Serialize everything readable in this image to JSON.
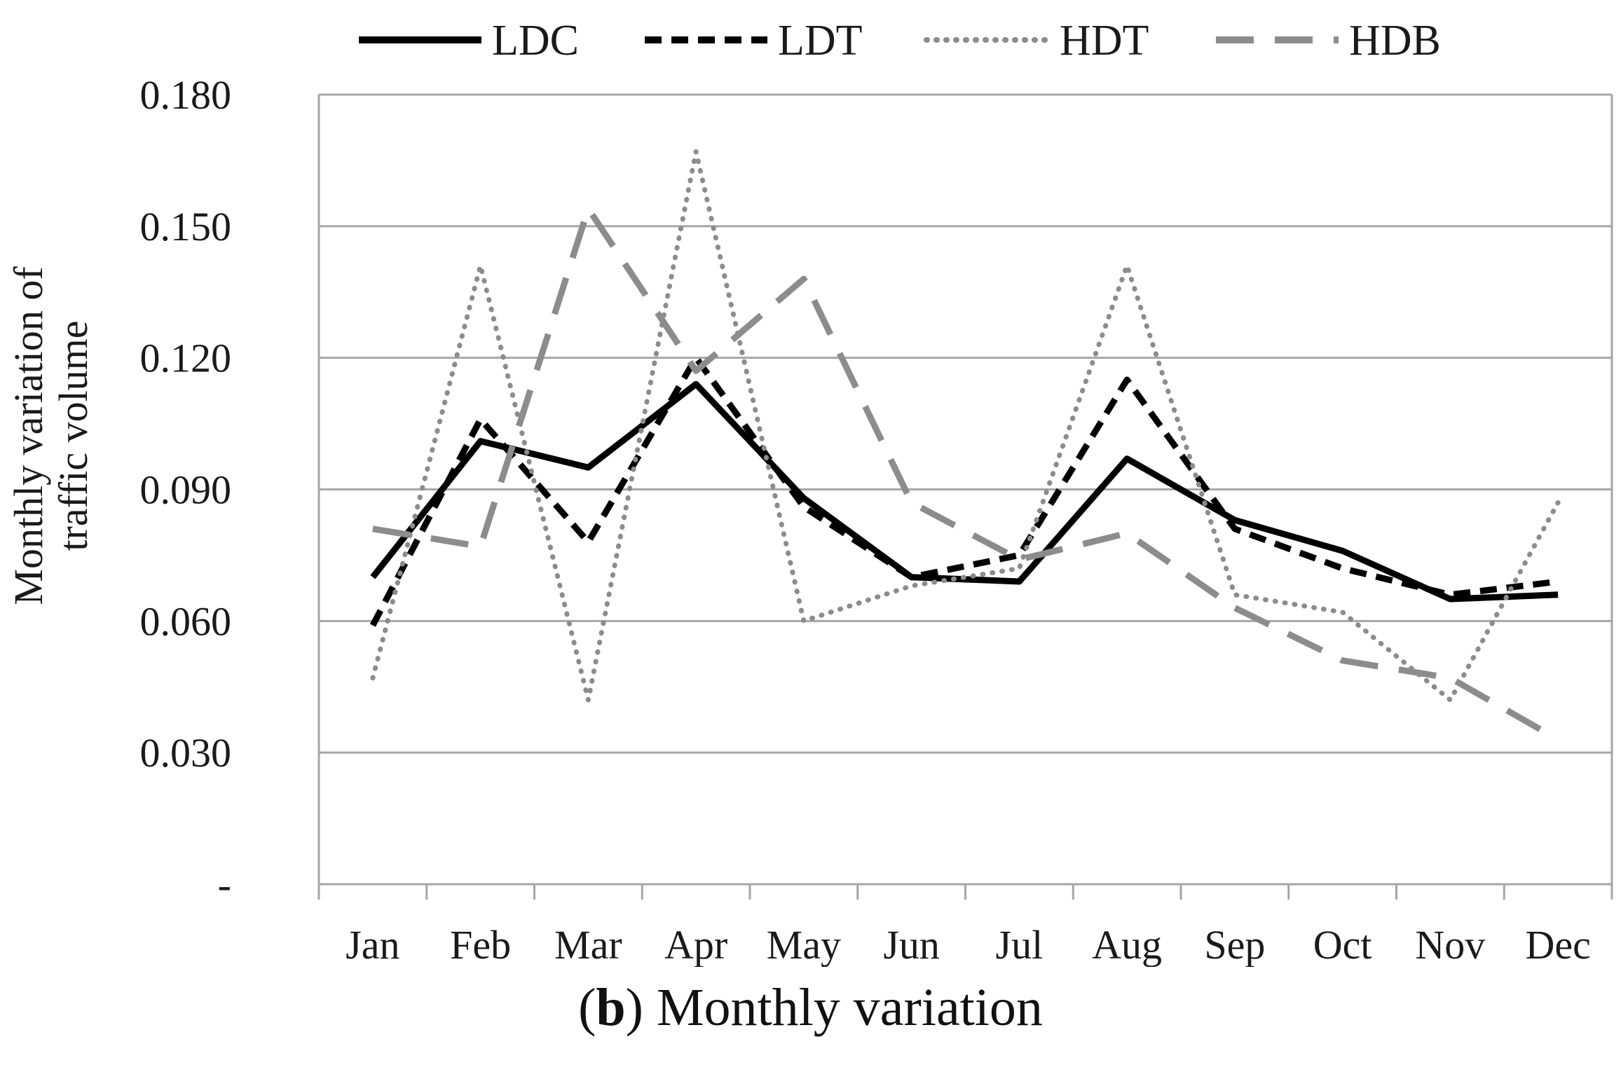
{
  "caption": {
    "prefix": "(",
    "bold": "b",
    "suffix": ") Monthly variation"
  },
  "chart_data": {
    "type": "line",
    "title": "",
    "xlabel": "",
    "ylabel": [
      "Monthly variation of",
      "traffic volume"
    ],
    "categories": [
      "Jan",
      "Feb",
      "Mar",
      "Apr",
      "May",
      "Jun",
      "Jul",
      "Aug",
      "Sep",
      "Oct",
      "Nov",
      "Dec"
    ],
    "ylim": [
      0,
      0.18
    ],
    "yticks": [
      0,
      0.03,
      0.06,
      0.09,
      0.12,
      0.15,
      0.18
    ],
    "ytick_labels": [
      "-",
      "0.030",
      "0.060",
      "0.090",
      "0.120",
      "0.150",
      "0.180"
    ],
    "grid": true,
    "legend_position": "top",
    "series": [
      {
        "name": "LDC",
        "style": "solid",
        "color": "#000000",
        "values": [
          0.07,
          0.101,
          0.095,
          0.114,
          0.088,
          0.07,
          0.069,
          0.097,
          0.083,
          0.076,
          0.065,
          0.066
        ]
      },
      {
        "name": "LDT",
        "style": "dashed",
        "color": "#000000",
        "values": [
          0.059,
          0.106,
          0.078,
          0.12,
          0.086,
          0.07,
          0.075,
          0.115,
          0.081,
          0.072,
          0.066,
          0.069
        ]
      },
      {
        "name": "HDT",
        "style": "dotted",
        "color": "#8c8c8c",
        "values": [
          0.047,
          0.141,
          0.042,
          0.167,
          0.06,
          0.068,
          0.072,
          0.141,
          0.066,
          0.062,
          0.042,
          0.087
        ]
      },
      {
        "name": "HDB",
        "style": "longdash",
        "color": "#8c8c8c",
        "values": [
          0.081,
          0.077,
          0.154,
          0.117,
          0.138,
          0.087,
          0.074,
          0.08,
          0.063,
          0.051,
          0.047,
          0.033
        ]
      }
    ]
  }
}
